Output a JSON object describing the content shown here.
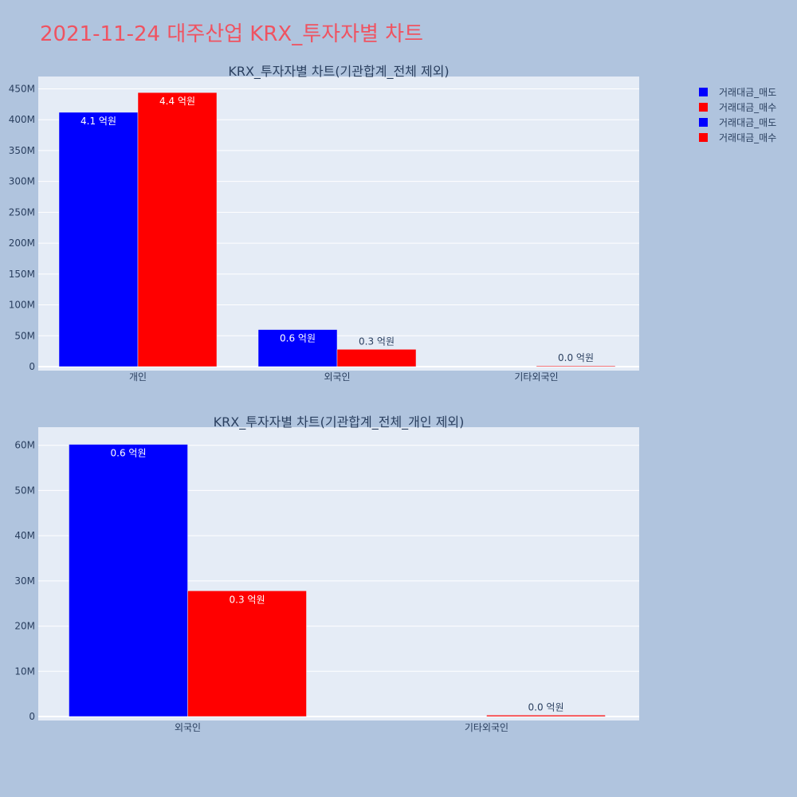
{
  "page_title": "2021-11-24 대주산업 KRX_투자자별 차트",
  "colors": {
    "background": "#b0c4de",
    "plot_bg": "#e5ecf6",
    "title": "#ef5361",
    "sell": "#0000ff",
    "buy": "#ff0000",
    "text": "#2a3f5f"
  },
  "legend": {
    "position": "top-right",
    "items": [
      {
        "label": "거래대금_매도",
        "color": "#0000ff"
      },
      {
        "label": "거래대금_매수",
        "color": "#ff0000"
      },
      {
        "label": "거래대금_매도",
        "color": "#0000ff"
      },
      {
        "label": "거래대금_매수",
        "color": "#ff0000"
      }
    ]
  },
  "chart_data": [
    {
      "type": "bar",
      "title": "KRX_투자자별 차트(기관합계_전체 제외)",
      "categories": [
        "개인",
        "외국인",
        "기타외국인"
      ],
      "series": [
        {
          "name": "거래대금_매도",
          "values": [
            412000000,
            60000000,
            0
          ],
          "labels": [
            "4.1 억원",
            "0.6 억원",
            ""
          ]
        },
        {
          "name": "거래대금_매수",
          "values": [
            444000000,
            28000000,
            300000
          ],
          "labels": [
            "4.4 억원",
            "0.3 억원",
            "0.0 억원"
          ]
        }
      ],
      "ylim": [
        0,
        470000000
      ],
      "yticks": [
        0,
        50000000,
        100000000,
        150000000,
        200000000,
        250000000,
        300000000,
        350000000,
        400000000,
        450000000
      ],
      "ytick_labels": [
        "0",
        "50M",
        "100M",
        "150M",
        "200M",
        "250M",
        "300M",
        "350M",
        "400M",
        "450M"
      ],
      "grid": true
    },
    {
      "type": "bar",
      "title": "KRX_투자자별 차트(기관합계_전체_개인 제외)",
      "categories": [
        "외국인",
        "기타외국인"
      ],
      "series": [
        {
          "name": "거래대금_매도",
          "values": [
            60200000,
            0
          ],
          "labels": [
            "0.6 억원",
            ""
          ]
        },
        {
          "name": "거래대금_매수",
          "values": [
            27800000,
            300000
          ],
          "labels": [
            "0.3 억원",
            "0.0 억원"
          ]
        }
      ],
      "ylim": [
        0,
        64000000
      ],
      "yticks": [
        0,
        10000000,
        20000000,
        30000000,
        40000000,
        50000000,
        60000000
      ],
      "ytick_labels": [
        "0",
        "10M",
        "20M",
        "30M",
        "40M",
        "50M",
        "60M"
      ],
      "grid": true
    }
  ]
}
